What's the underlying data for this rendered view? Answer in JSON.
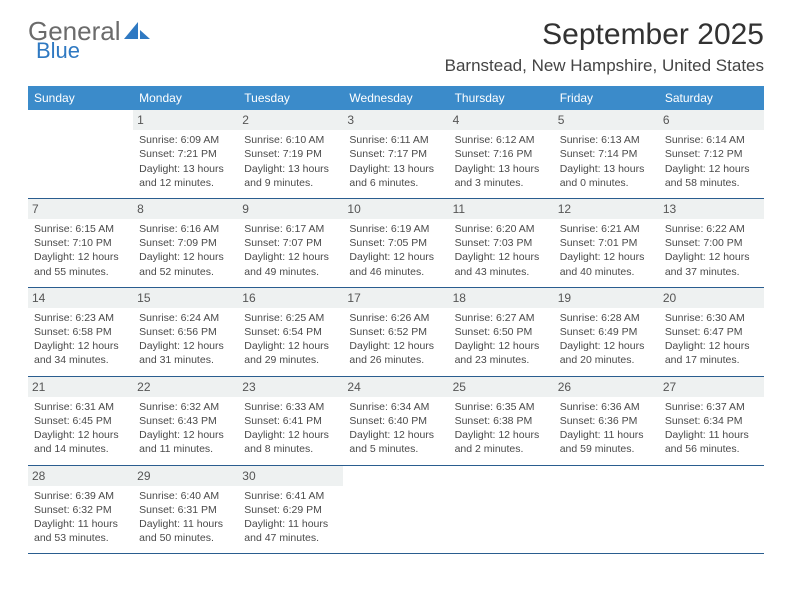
{
  "logo": {
    "text1": "General",
    "text2": "Blue",
    "shape_color": "#2f79c2"
  },
  "title": "September 2025",
  "location": "Barnstead, New Hampshire, United States",
  "colors": {
    "header_bg": "#3b8bca",
    "header_fg": "#ffffff",
    "daynum_bg": "#eef1f1",
    "border": "#2a5d8f"
  },
  "day_headers": [
    "Sunday",
    "Monday",
    "Tuesday",
    "Wednesday",
    "Thursday",
    "Friday",
    "Saturday"
  ],
  "weeks": [
    [
      {
        "n": "",
        "sr": "",
        "ss": "",
        "dl": ""
      },
      {
        "n": "1",
        "sr": "Sunrise: 6:09 AM",
        "ss": "Sunset: 7:21 PM",
        "dl": "Daylight: 13 hours and 12 minutes."
      },
      {
        "n": "2",
        "sr": "Sunrise: 6:10 AM",
        "ss": "Sunset: 7:19 PM",
        "dl": "Daylight: 13 hours and 9 minutes."
      },
      {
        "n": "3",
        "sr": "Sunrise: 6:11 AM",
        "ss": "Sunset: 7:17 PM",
        "dl": "Daylight: 13 hours and 6 minutes."
      },
      {
        "n": "4",
        "sr": "Sunrise: 6:12 AM",
        "ss": "Sunset: 7:16 PM",
        "dl": "Daylight: 13 hours and 3 minutes."
      },
      {
        "n": "5",
        "sr": "Sunrise: 6:13 AM",
        "ss": "Sunset: 7:14 PM",
        "dl": "Daylight: 13 hours and 0 minutes."
      },
      {
        "n": "6",
        "sr": "Sunrise: 6:14 AM",
        "ss": "Sunset: 7:12 PM",
        "dl": "Daylight: 12 hours and 58 minutes."
      }
    ],
    [
      {
        "n": "7",
        "sr": "Sunrise: 6:15 AM",
        "ss": "Sunset: 7:10 PM",
        "dl": "Daylight: 12 hours and 55 minutes."
      },
      {
        "n": "8",
        "sr": "Sunrise: 6:16 AM",
        "ss": "Sunset: 7:09 PM",
        "dl": "Daylight: 12 hours and 52 minutes."
      },
      {
        "n": "9",
        "sr": "Sunrise: 6:17 AM",
        "ss": "Sunset: 7:07 PM",
        "dl": "Daylight: 12 hours and 49 minutes."
      },
      {
        "n": "10",
        "sr": "Sunrise: 6:19 AM",
        "ss": "Sunset: 7:05 PM",
        "dl": "Daylight: 12 hours and 46 minutes."
      },
      {
        "n": "11",
        "sr": "Sunrise: 6:20 AM",
        "ss": "Sunset: 7:03 PM",
        "dl": "Daylight: 12 hours and 43 minutes."
      },
      {
        "n": "12",
        "sr": "Sunrise: 6:21 AM",
        "ss": "Sunset: 7:01 PM",
        "dl": "Daylight: 12 hours and 40 minutes."
      },
      {
        "n": "13",
        "sr": "Sunrise: 6:22 AM",
        "ss": "Sunset: 7:00 PM",
        "dl": "Daylight: 12 hours and 37 minutes."
      }
    ],
    [
      {
        "n": "14",
        "sr": "Sunrise: 6:23 AM",
        "ss": "Sunset: 6:58 PM",
        "dl": "Daylight: 12 hours and 34 minutes."
      },
      {
        "n": "15",
        "sr": "Sunrise: 6:24 AM",
        "ss": "Sunset: 6:56 PM",
        "dl": "Daylight: 12 hours and 31 minutes."
      },
      {
        "n": "16",
        "sr": "Sunrise: 6:25 AM",
        "ss": "Sunset: 6:54 PM",
        "dl": "Daylight: 12 hours and 29 minutes."
      },
      {
        "n": "17",
        "sr": "Sunrise: 6:26 AM",
        "ss": "Sunset: 6:52 PM",
        "dl": "Daylight: 12 hours and 26 minutes."
      },
      {
        "n": "18",
        "sr": "Sunrise: 6:27 AM",
        "ss": "Sunset: 6:50 PM",
        "dl": "Daylight: 12 hours and 23 minutes."
      },
      {
        "n": "19",
        "sr": "Sunrise: 6:28 AM",
        "ss": "Sunset: 6:49 PM",
        "dl": "Daylight: 12 hours and 20 minutes."
      },
      {
        "n": "20",
        "sr": "Sunrise: 6:30 AM",
        "ss": "Sunset: 6:47 PM",
        "dl": "Daylight: 12 hours and 17 minutes."
      }
    ],
    [
      {
        "n": "21",
        "sr": "Sunrise: 6:31 AM",
        "ss": "Sunset: 6:45 PM",
        "dl": "Daylight: 12 hours and 14 minutes."
      },
      {
        "n": "22",
        "sr": "Sunrise: 6:32 AM",
        "ss": "Sunset: 6:43 PM",
        "dl": "Daylight: 12 hours and 11 minutes."
      },
      {
        "n": "23",
        "sr": "Sunrise: 6:33 AM",
        "ss": "Sunset: 6:41 PM",
        "dl": "Daylight: 12 hours and 8 minutes."
      },
      {
        "n": "24",
        "sr": "Sunrise: 6:34 AM",
        "ss": "Sunset: 6:40 PM",
        "dl": "Daylight: 12 hours and 5 minutes."
      },
      {
        "n": "25",
        "sr": "Sunrise: 6:35 AM",
        "ss": "Sunset: 6:38 PM",
        "dl": "Daylight: 12 hours and 2 minutes."
      },
      {
        "n": "26",
        "sr": "Sunrise: 6:36 AM",
        "ss": "Sunset: 6:36 PM",
        "dl": "Daylight: 11 hours and 59 minutes."
      },
      {
        "n": "27",
        "sr": "Sunrise: 6:37 AM",
        "ss": "Sunset: 6:34 PM",
        "dl": "Daylight: 11 hours and 56 minutes."
      }
    ],
    [
      {
        "n": "28",
        "sr": "Sunrise: 6:39 AM",
        "ss": "Sunset: 6:32 PM",
        "dl": "Daylight: 11 hours and 53 minutes."
      },
      {
        "n": "29",
        "sr": "Sunrise: 6:40 AM",
        "ss": "Sunset: 6:31 PM",
        "dl": "Daylight: 11 hours and 50 minutes."
      },
      {
        "n": "30",
        "sr": "Sunrise: 6:41 AM",
        "ss": "Sunset: 6:29 PM",
        "dl": "Daylight: 11 hours and 47 minutes."
      },
      {
        "n": "",
        "sr": "",
        "ss": "",
        "dl": ""
      },
      {
        "n": "",
        "sr": "",
        "ss": "",
        "dl": ""
      },
      {
        "n": "",
        "sr": "",
        "ss": "",
        "dl": ""
      },
      {
        "n": "",
        "sr": "",
        "ss": "",
        "dl": ""
      }
    ]
  ]
}
